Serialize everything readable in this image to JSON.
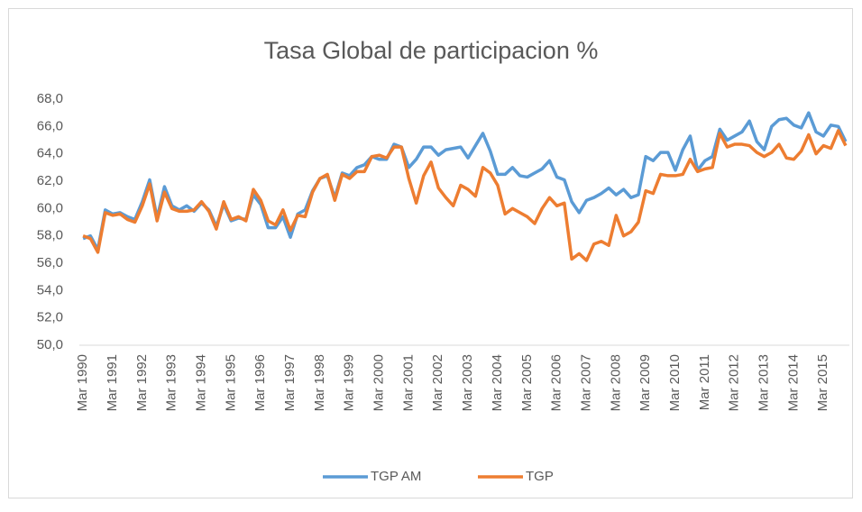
{
  "chart_data": {
    "type": "line",
    "title": "Tasa Global de participacion %",
    "categories": [
      "Mar 1990",
      null,
      null,
      null,
      "Mar 1991",
      null,
      null,
      null,
      "Mar 1992",
      null,
      null,
      null,
      "Mar 1993",
      null,
      null,
      null,
      "Mar 1994",
      null,
      null,
      null,
      "Mar 1995",
      null,
      null,
      null,
      "Mar 1996",
      null,
      null,
      null,
      "Mar 1997",
      null,
      null,
      null,
      "Mar 1998",
      null,
      null,
      null,
      "Mar 1999",
      null,
      null,
      null,
      "Mar 2000",
      null,
      null,
      null,
      "Mar 2001",
      null,
      null,
      null,
      "Mar 2002",
      null,
      null,
      null,
      "Mar 2003",
      null,
      null,
      null,
      "Mar 2004",
      null,
      null,
      null,
      "Mar 2005",
      null,
      null,
      null,
      "Mar 2006",
      null,
      null,
      null,
      "Mar 2007",
      null,
      null,
      null,
      "Mar 2008",
      null,
      null,
      null,
      "Mar 2009",
      null,
      null,
      null,
      "Mar 2010",
      null,
      null,
      null,
      "Mar 2011",
      null,
      null,
      null,
      "Mar 2012",
      null,
      null,
      null,
      "Mar 2013",
      null,
      null,
      null,
      "Mar 2014",
      null,
      null,
      null,
      "Mar 2015",
      null,
      null,
      null
    ],
    "series": [
      {
        "name": "TGP AM",
        "color": "#5b9bd5",
        "values": [
          57.8,
          58.0,
          57.0,
          59.9,
          59.6,
          59.7,
          59.4,
          59.2,
          60.5,
          62.1,
          59.3,
          61.6,
          60.2,
          59.9,
          60.2,
          59.8,
          60.4,
          59.9,
          58.7,
          60.3,
          59.1,
          59.3,
          59.2,
          61.0,
          60.3,
          58.6,
          58.6,
          59.4,
          57.9,
          59.6,
          59.9,
          61.3,
          62.2,
          62.4,
          60.8,
          62.6,
          62.4,
          63.0,
          63.2,
          63.8,
          63.6,
          63.6,
          64.7,
          64.5,
          63.0,
          63.6,
          64.5,
          64.5,
          63.9,
          64.3,
          64.4,
          64.5,
          63.7,
          64.6,
          65.5,
          64.2,
          62.5,
          62.5,
          63.0,
          62.4,
          62.3,
          62.6,
          62.9,
          63.5,
          62.3,
          62.1,
          60.5,
          59.7,
          60.6,
          60.8,
          61.1,
          61.5,
          61.0,
          61.4,
          60.8,
          61.0,
          63.8,
          63.5,
          64.1,
          64.1,
          62.8,
          64.3,
          65.3,
          62.8,
          63.5,
          63.8,
          65.8,
          65.0,
          65.3,
          65.6,
          66.4,
          64.9,
          64.3,
          66.0,
          66.5,
          66.6,
          66.1,
          65.9,
          67.0,
          65.6,
          65.3,
          66.1,
          66.0,
          64.9
        ]
      },
      {
        "name": "TGP",
        "color": "#ed7d31",
        "values": [
          58.0,
          57.8,
          56.8,
          59.7,
          59.5,
          59.6,
          59.2,
          59.0,
          60.2,
          61.8,
          59.1,
          61.2,
          60.0,
          59.8,
          59.8,
          59.9,
          60.5,
          59.8,
          58.5,
          60.5,
          59.2,
          59.4,
          59.1,
          61.4,
          60.6,
          59.1,
          58.8,
          59.9,
          58.4,
          59.5,
          59.4,
          61.2,
          62.2,
          62.5,
          60.6,
          62.5,
          62.2,
          62.7,
          62.7,
          63.8,
          63.9,
          63.7,
          64.5,
          64.5,
          62.2,
          60.4,
          62.4,
          63.4,
          61.5,
          60.8,
          60.2,
          61.7,
          61.4,
          60.9,
          63.0,
          62.6,
          61.7,
          59.6,
          60.0,
          59.7,
          59.4,
          58.9,
          60.0,
          60.8,
          60.2,
          60.4,
          56.3,
          56.7,
          56.2,
          57.4,
          57.6,
          57.3,
          59.5,
          58.0,
          58.3,
          59.0,
          61.3,
          61.1,
          62.5,
          62.4,
          62.4,
          62.5,
          63.6,
          62.7,
          62.9,
          63.0,
          65.5,
          64.5,
          64.7,
          64.7,
          64.6,
          64.1,
          63.8,
          64.1,
          64.7,
          63.7,
          63.6,
          64.2,
          65.4,
          64.0,
          64.6,
          64.4,
          65.7,
          64.6
        ]
      }
    ],
    "ylim": [
      50,
      68
    ],
    "yticks": [
      {
        "value": 50,
        "label": "50,0"
      },
      {
        "value": 52,
        "label": "52,0"
      },
      {
        "value": 54,
        "label": "54,0"
      },
      {
        "value": 56,
        "label": "56,0"
      },
      {
        "value": 58,
        "label": "58,0"
      },
      {
        "value": 60,
        "label": "60,0"
      },
      {
        "value": 62,
        "label": "62,0"
      },
      {
        "value": 64,
        "label": "64,0"
      },
      {
        "value": 66,
        "label": "66,0"
      },
      {
        "value": 68,
        "label": "68,0"
      }
    ],
    "grid": false,
    "legend": "bottom"
  }
}
